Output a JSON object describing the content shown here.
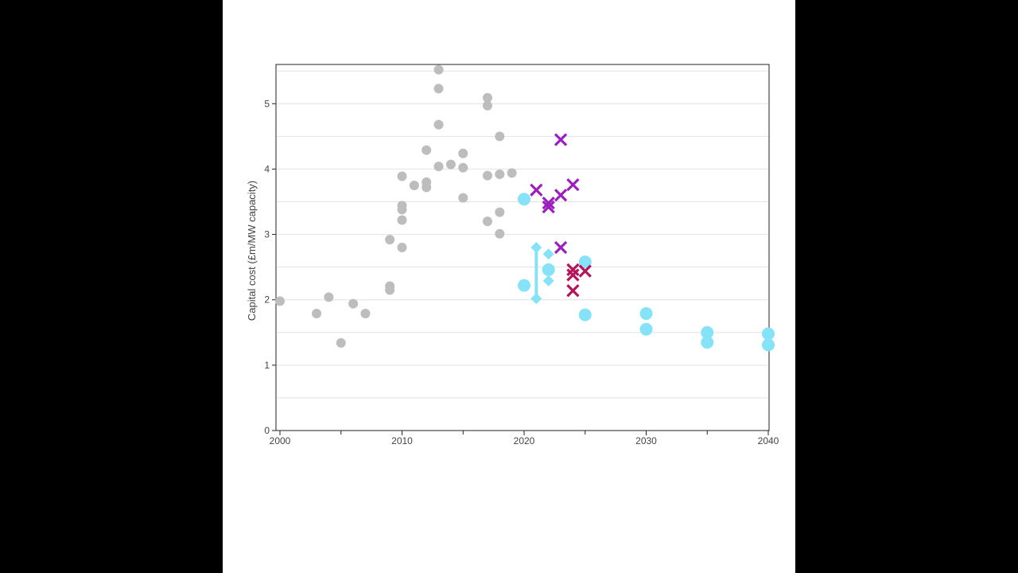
{
  "colors": {
    "page_background": "#000000",
    "panel_background": "#ffffff",
    "historic": "#bdbdbd",
    "cyan": "#86e3f7",
    "purple": "#9b1fbf",
    "crimson": "#b5135a",
    "gridline": "#e2e2e2",
    "axis": "#222222"
  },
  "chart_data": {
    "type": "scatter",
    "ylabel": "Capital cost (£m/MW capacity)",
    "xlabel": "",
    "xlim": [
      2000,
      2040
    ],
    "ylim": [
      0,
      5.6
    ],
    "x_ticks": [
      2000,
      2010,
      2020,
      2030,
      2040
    ],
    "x_minor_ticks": [
      2005,
      2015,
      2025,
      2035
    ],
    "y_ticks": [
      0,
      1,
      2,
      3,
      4,
      5
    ],
    "grid": "horizontal every 0.5",
    "series": [
      {
        "marker": "circle",
        "color": "#bdbdbd",
        "size": "small",
        "points": [
          [
            2000,
            1.98
          ],
          [
            2003,
            1.79
          ],
          [
            2004,
            2.04
          ],
          [
            2005,
            1.34
          ],
          [
            2006,
            1.94
          ],
          [
            2007,
            1.79
          ],
          [
            2009,
            2.92
          ],
          [
            2009,
            2.21
          ],
          [
            2009,
            2.15
          ],
          [
            2010,
            3.89
          ],
          [
            2010,
            3.44
          ],
          [
            2010,
            3.38
          ],
          [
            2010,
            3.22
          ],
          [
            2010,
            2.8
          ],
          [
            2011,
            3.75
          ],
          [
            2012,
            4.29
          ],
          [
            2012,
            3.8
          ],
          [
            2012,
            3.72
          ],
          [
            2013,
            5.52
          ],
          [
            2013,
            5.23
          ],
          [
            2013,
            4.68
          ],
          [
            2013,
            4.04
          ],
          [
            2014,
            4.07
          ],
          [
            2015,
            4.24
          ],
          [
            2015,
            4.02
          ],
          [
            2015,
            3.56
          ],
          [
            2017,
            5.09
          ],
          [
            2017,
            4.97
          ],
          [
            2017,
            3.9
          ],
          [
            2017,
            3.2
          ],
          [
            2018,
            4.5
          ],
          [
            2018,
            3.92
          ],
          [
            2018,
            3.34
          ],
          [
            2018,
            3.01
          ],
          [
            2019,
            3.94
          ]
        ]
      },
      {
        "marker": "circle",
        "color": "#86e3f7",
        "size": "large",
        "points": [
          [
            2020,
            3.54
          ],
          [
            2020,
            2.22
          ],
          [
            2022,
            2.46
          ],
          [
            2025,
            2.58
          ],
          [
            2025,
            1.77
          ],
          [
            2030,
            1.79
          ],
          [
            2030,
            1.55
          ],
          [
            2035,
            1.5
          ],
          [
            2035,
            1.35
          ],
          [
            2040,
            1.48
          ],
          [
            2040,
            1.31
          ]
        ]
      },
      {
        "marker": "diamond",
        "color": "#86e3f7",
        "points": [
          [
            2021,
            2.8
          ],
          [
            2021,
            2.02
          ],
          [
            2022,
            2.7
          ],
          [
            2022,
            2.29
          ]
        ]
      },
      {
        "marker": "cross",
        "color": "#9b1fbf",
        "points": [
          [
            2023,
            4.45
          ],
          [
            2021,
            3.68
          ],
          [
            2022,
            3.48
          ],
          [
            2022,
            3.42
          ],
          [
            2023,
            3.6
          ],
          [
            2024,
            3.76
          ],
          [
            2023,
            2.8
          ]
        ]
      },
      {
        "marker": "cross",
        "color": "#b5135a",
        "points": [
          [
            2024,
            2.46
          ],
          [
            2024,
            2.38
          ],
          [
            2025,
            2.44
          ],
          [
            2024,
            2.14
          ]
        ]
      }
    ],
    "ranges": [
      {
        "x": 2021,
        "low": 2.02,
        "high": 2.8,
        "color": "#86e3f7"
      }
    ]
  }
}
